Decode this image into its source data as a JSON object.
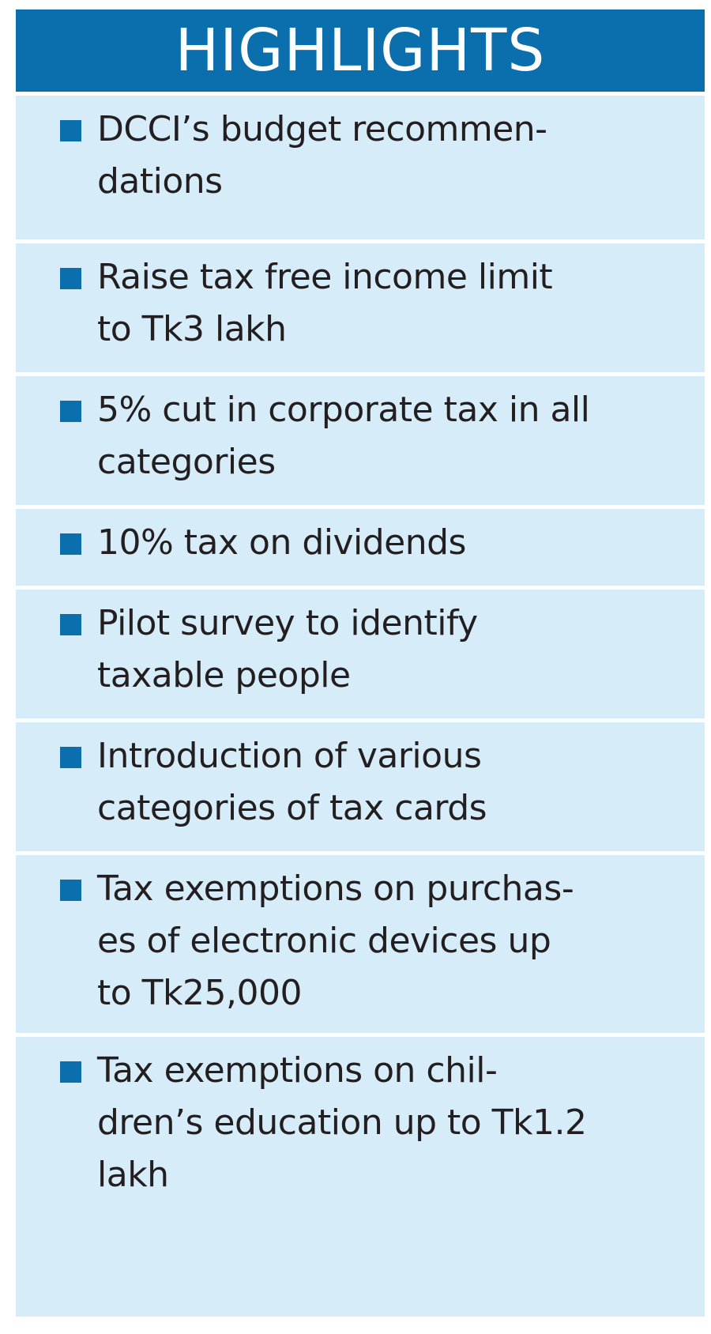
{
  "header": {
    "title": "HIGHLIGHTS"
  },
  "colors": {
    "accent": "#0b6fae",
    "panel": "#d6ecf9",
    "text": "#231f20",
    "divider": "#ffffff"
  },
  "items": [
    {
      "text": "DCCI’s budget recommen-\ndations"
    },
    {
      "text": "Raise tax free income limit\nto Tk3 lakh"
    },
    {
      "text": "5% cut in corporate tax in all\ncategories"
    },
    {
      "text": "10% tax on dividends"
    },
    {
      "text": "Pilot survey to identify\ntaxable people"
    },
    {
      "text": "Introduction of various\ncategories of tax cards"
    },
    {
      "text": "Tax exemptions on purchas-\nes of electronic devices up\nto Tk25,000"
    },
    {
      "text": "Tax exemptions on chil-\ndren’s education up to Tk1.2\nlakh"
    }
  ]
}
